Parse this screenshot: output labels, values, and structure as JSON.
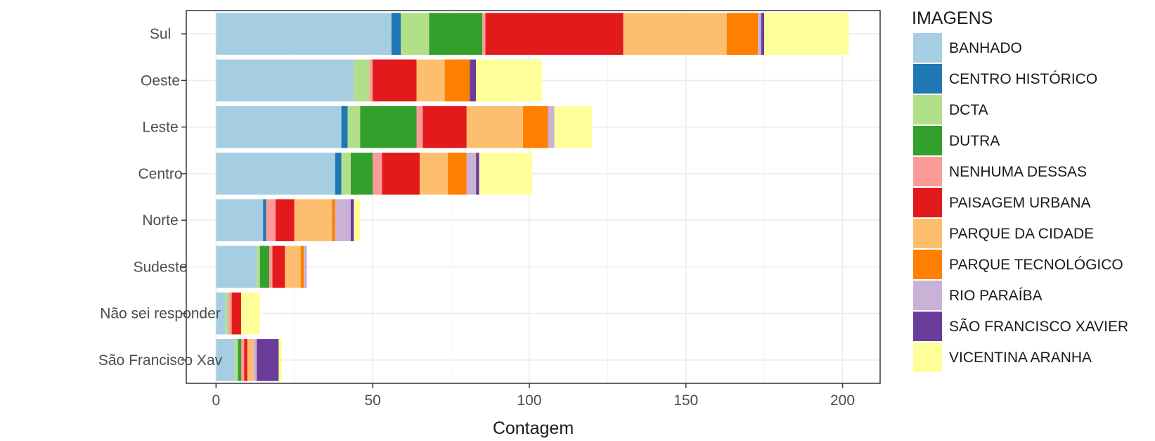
{
  "chart_data": {
    "type": "bar",
    "orientation": "horizontal",
    "stacked": true,
    "xlabel": "Contagem",
    "ylabel": "",
    "xlim": [
      -9.5,
      212
    ],
    "xticks": [
      0,
      50,
      100,
      150,
      200
    ],
    "grid": true,
    "legend_position": "right",
    "legend_title": "IMAGENS",
    "categories": [
      "Sul",
      "Oeste",
      "Leste",
      "Centro",
      "Norte",
      "Sudeste",
      "Não sei responder",
      "São Francisco Xav"
    ],
    "series": [
      {
        "name": "BANHADO",
        "color": "#A6CEE3",
        "values": [
          56,
          44,
          40,
          38,
          15,
          13,
          3,
          6
        ]
      },
      {
        "name": "CENTRO HISTÓRICO",
        "color": "#1F78B4",
        "values": [
          3,
          0,
          2,
          2,
          1,
          0,
          0,
          0
        ]
      },
      {
        "name": "DCTA",
        "color": "#B2DF8A",
        "values": [
          9,
          5,
          4,
          3,
          0,
          1,
          1,
          1
        ]
      },
      {
        "name": "DUTRA",
        "color": "#33A02C",
        "values": [
          17,
          0,
          18,
          7,
          0,
          3,
          0,
          1
        ]
      },
      {
        "name": "NENHUMA DESSAS",
        "color": "#FB9A99",
        "values": [
          1,
          1,
          2,
          3,
          3,
          1,
          1,
          1
        ]
      },
      {
        "name": "PAISAGEM URBANA",
        "color": "#E31A1C",
        "values": [
          44,
          14,
          14,
          12,
          6,
          4,
          3,
          1
        ]
      },
      {
        "name": "PARQUE DA CIDADE",
        "color": "#FDBF6F",
        "values": [
          33,
          9,
          18,
          9,
          12,
          5,
          0,
          2
        ]
      },
      {
        "name": "PARQUE TECNOLÓGICO",
        "color": "#FF7F00",
        "values": [
          10,
          8,
          8,
          6,
          1,
          1,
          0,
          0
        ]
      },
      {
        "name": "RIO PARAÍBA",
        "color": "#CAB2D6",
        "values": [
          1,
          0,
          2,
          3,
          5,
          1,
          0,
          1
        ]
      },
      {
        "name": "SÃO FRANCISCO XAVIER",
        "color": "#6A3D9A",
        "values": [
          1,
          2,
          0,
          1,
          1,
          0,
          0,
          7
        ]
      },
      {
        "name": "VICENTINA ARANHA",
        "color": "#FFFF99",
        "values": [
          27,
          21,
          12,
          17,
          2,
          0,
          6,
          1
        ]
      }
    ]
  }
}
